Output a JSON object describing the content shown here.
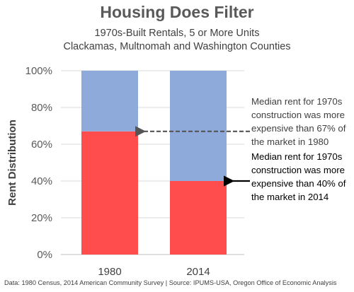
{
  "chart_data": {
    "type": "bar",
    "stacked": true,
    "title": "Housing Does Filter",
    "subtitle_lines": [
      "1970s-Built Rentals, 5 or More Units",
      "Clackamas, Multnomah and Washington Counties"
    ],
    "categories": [
      "1980",
      "2014"
    ],
    "series": [
      {
        "values": [
          67,
          40
        ],
        "color": "#ff4d4d"
      },
      {
        "values": [
          33,
          60
        ],
        "color": "#8eaadb"
      }
    ],
    "ylabel": "Rent Distribution",
    "ylim": [
      0,
      100
    ],
    "yticks": [
      "0%",
      "20%",
      "40%",
      "60%",
      "80%",
      "100%"
    ],
    "grid": true,
    "annotations": [
      {
        "text_lines": [
          "Median rent for 1970s",
          "construction was more",
          "expensive than 67% of",
          "the market in 1980"
        ],
        "category": "1980",
        "value": 67,
        "arrow_style": "dashed",
        "text_color": "#404040",
        "arrow_color": "#555555"
      },
      {
        "text_lines": [
          "Median rent for 1970s",
          "construction was more",
          "expensive than 40% of",
          "the market in 2014"
        ],
        "category": "2014",
        "value": 40,
        "arrow_style": "solid",
        "text_color": "#000000",
        "arrow_color": "#000000"
      }
    ],
    "source": "Data: 1980 Census, 2014 American Community Survey | Source: IPUMS-USA, Oregon Office of Economic Analysis"
  }
}
